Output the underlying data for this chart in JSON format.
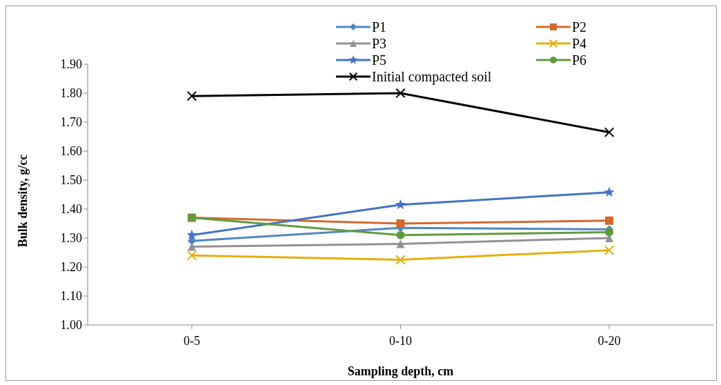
{
  "chart_data": {
    "type": "line",
    "xlabel": "Sampling depth, cm",
    "ylabel": "Bulk density, g/cc",
    "categories": [
      "0-5",
      "0-10",
      "0-20"
    ],
    "series": [
      {
        "name": "P1",
        "color": "#4f86c0",
        "marker": "diamond",
        "values": [
          1.29,
          1.335,
          1.33
        ]
      },
      {
        "name": "P2",
        "color": "#d4692c",
        "marker": "square",
        "values": [
          1.37,
          1.35,
          1.36
        ]
      },
      {
        "name": "P3",
        "color": "#929292",
        "marker": "triangle",
        "values": [
          1.27,
          1.28,
          1.3
        ]
      },
      {
        "name": "P4",
        "color": "#e8ae0b",
        "marker": "cross",
        "values": [
          1.24,
          1.225,
          1.258
        ]
      },
      {
        "name": "P5",
        "color": "#4472c4",
        "marker": "star",
        "values": [
          1.31,
          1.415,
          1.458
        ]
      },
      {
        "name": "P6",
        "color": "#609a3f",
        "marker": "circle",
        "values": [
          1.37,
          1.31,
          1.32
        ]
      },
      {
        "name": "Initial compacted soil",
        "color": "#000000",
        "marker": "cross",
        "values": [
          1.79,
          1.8,
          1.665
        ]
      }
    ],
    "ylim": [
      1.0,
      1.9
    ],
    "yticks": [
      {
        "value": 1.0,
        "label": "1.00"
      },
      {
        "value": 1.1,
        "label": "1.10"
      },
      {
        "value": 1.2,
        "label": "1.20"
      },
      {
        "value": 1.3,
        "label": "1.30"
      },
      {
        "value": 1.4,
        "label": "1.40"
      },
      {
        "value": 1.5,
        "label": "1.50"
      },
      {
        "value": 1.6,
        "label": "1.60"
      },
      {
        "value": 1.7,
        "label": "1.70"
      },
      {
        "value": 1.8,
        "label": "1.80"
      },
      {
        "value": 1.9,
        "label": "1.90"
      }
    ],
    "grid": false,
    "legend": "top",
    "line_style": "solid"
  }
}
